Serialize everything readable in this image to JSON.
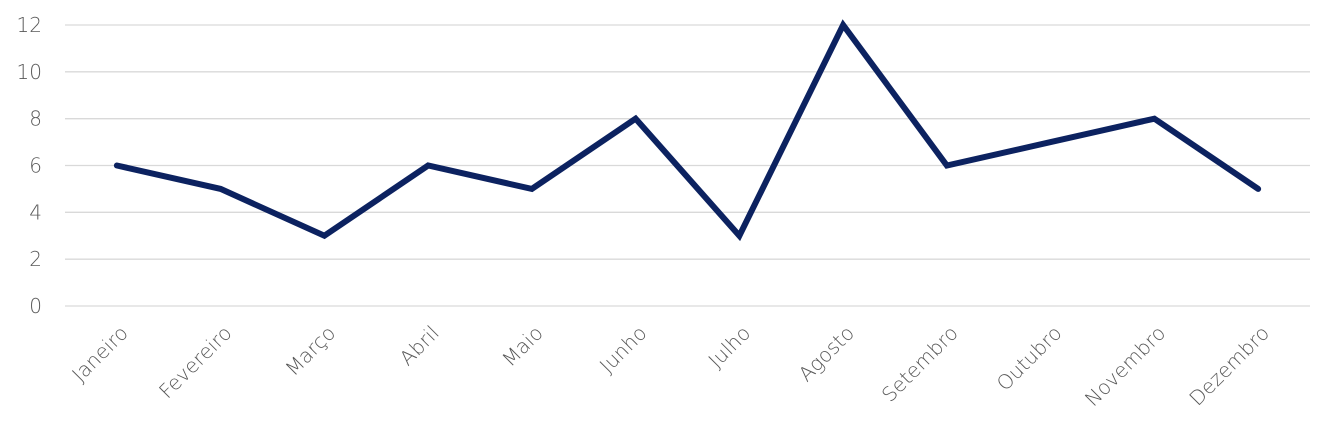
{
  "chart_data": {
    "type": "line",
    "categories": [
      "Janeiro",
      "Fevereiro",
      "Março",
      "Abril",
      "Maio",
      "Junho",
      "Julho",
      "Agosto",
      "Setembro",
      "Outubro",
      "Novembro",
      "Dezembro"
    ],
    "values": [
      6,
      5,
      3,
      6,
      5,
      8,
      3,
      12,
      6,
      7,
      8,
      5
    ],
    "color": "#0c2260",
    "ylim": [
      0,
      12
    ],
    "yticks": [
      0,
      2,
      4,
      6,
      8,
      10,
      12
    ],
    "grid": true
  }
}
